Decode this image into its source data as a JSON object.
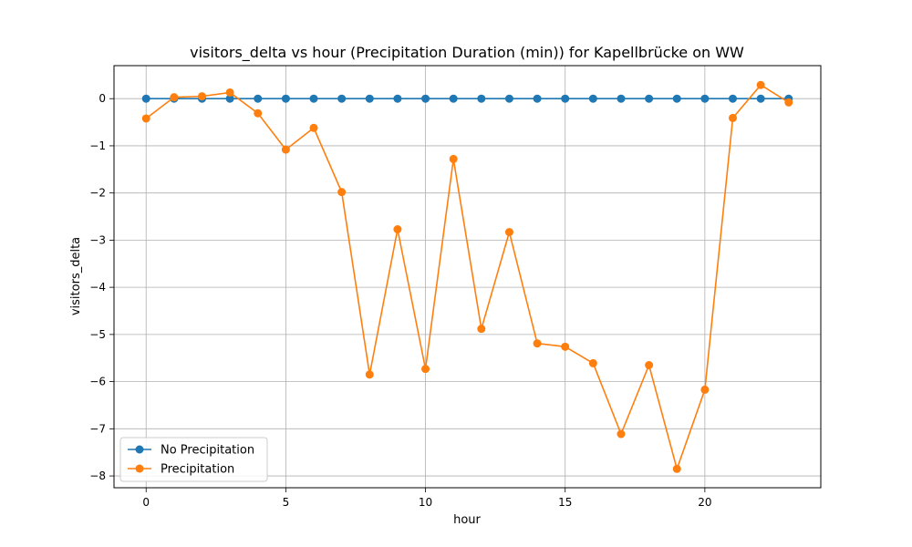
{
  "chart_data": {
    "type": "line",
    "title": "visitors_delta vs hour (Precipitation Duration (min)) for Kapellbrücke on WW",
    "xlabel": "hour",
    "ylabel": "visitors_delta",
    "xlim": [
      -1.15,
      24.15
    ],
    "ylim": [
      -8.25,
      0.7
    ],
    "xticks": [
      0,
      5,
      10,
      15,
      20
    ],
    "yticks": [
      0,
      -1,
      -2,
      -3,
      -4,
      -5,
      -6,
      -7,
      -8
    ],
    "ytick_labels": [
      "0",
      "−1",
      "−2",
      "−3",
      "−4",
      "−5",
      "−6",
      "−7",
      "−8"
    ],
    "grid": true,
    "legend_position": "lower-left",
    "x": [
      0,
      1,
      2,
      3,
      4,
      5,
      6,
      7,
      8,
      9,
      10,
      11,
      12,
      13,
      14,
      15,
      16,
      17,
      18,
      19,
      20,
      21,
      22,
      23
    ],
    "series": [
      {
        "name": "No Precipitation",
        "color": "#1f77b4",
        "values": [
          0,
          0,
          0,
          0,
          0,
          0,
          0,
          0,
          0,
          0,
          0,
          0,
          0,
          0,
          0,
          0,
          0,
          0,
          0,
          0,
          0,
          0,
          0,
          0
        ]
      },
      {
        "name": "Precipitation",
        "color": "#ff7f0e",
        "values": [
          -0.42,
          0.03,
          0.05,
          0.13,
          -0.31,
          -1.08,
          -0.62,
          -1.98,
          -5.85,
          -2.77,
          -5.73,
          -1.28,
          -4.88,
          -2.83,
          -5.19,
          -5.26,
          -5.61,
          -7.11,
          -5.65,
          -7.85,
          -6.17,
          -0.41,
          0.29,
          -0.08
        ]
      }
    ]
  }
}
